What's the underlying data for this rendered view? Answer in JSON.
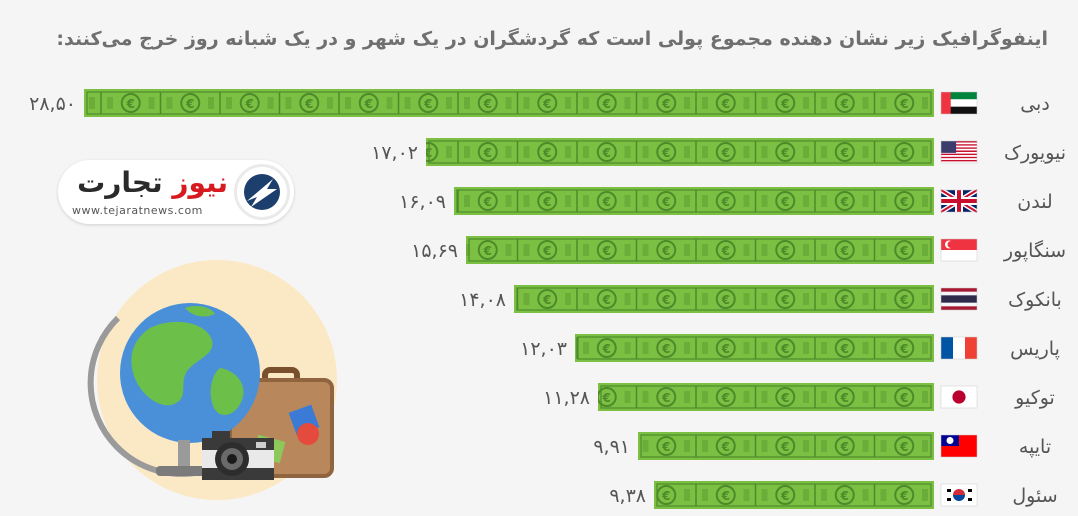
{
  "title": "اینفوگرافیک زیر نشان دهنده مجموع پولی است که گردشگران در یک شهر و در یک شبانه روز خرج می‌کنند:",
  "logo": {
    "name_part1": "تجارت",
    "name_part2": "نیوز",
    "url": "www.tejaratnews.com"
  },
  "colors": {
    "bill_green": "#7cc043",
    "bill_dark": "#4f8a2a",
    "text_gray": "#6f6f6f"
  },
  "chart_data": {
    "type": "bar",
    "orientation": "horizontal",
    "categories": [
      "دبی",
      "نیویورک",
      "لندن",
      "سنگاپور",
      "بانکوک",
      "پاریس",
      "توکیو",
      "تایپه",
      "سئول"
    ],
    "values": [
      28.5,
      17.02,
      16.09,
      15.69,
      14.08,
      12.03,
      11.28,
      9.91,
      9.38
    ],
    "value_labels": [
      "۲۸,۵۰",
      "۱۷,۰۲",
      "۱۶,۰۹",
      "۱۵,۶۹",
      "۱۴,۰۸",
      "۱۲,۰۳",
      "۱۱,۲۸",
      "۹,۹۱",
      "۹,۳۸"
    ],
    "flags": [
      "uae-flag",
      "usa-flag",
      "uk-flag",
      "singapore-flag",
      "thailand-flag",
      "france-flag",
      "japan-flag",
      "taiwan-flag",
      "south-korea-flag"
    ],
    "xlim": [
      0,
      28.5
    ],
    "grid": false,
    "legend": "none"
  }
}
